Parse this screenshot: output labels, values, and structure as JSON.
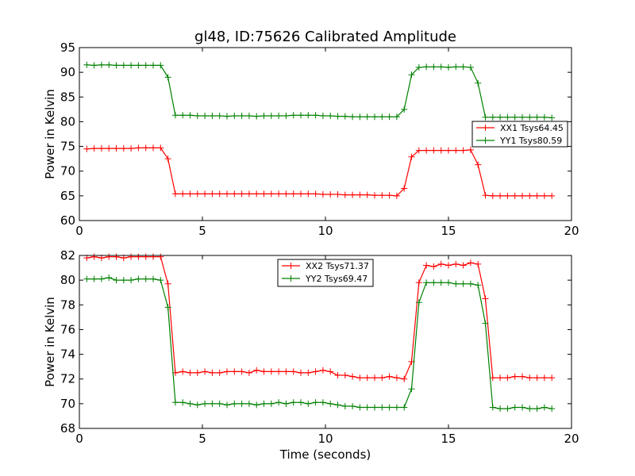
{
  "title": "gl48, ID:75626 Calibrated Amplitude",
  "xlabel": "Time (seconds)",
  "chart_data": [
    {
      "type": "line",
      "title": "gl48, ID:75626 Calibrated Amplitude",
      "xlabel": "",
      "ylabel": "Power in Kelvin",
      "xlim": [
        0,
        20
      ],
      "ylim": [
        60,
        95
      ],
      "xticks": [
        0,
        5,
        10,
        15,
        20
      ],
      "yticks": [
        60,
        65,
        70,
        75,
        80,
        85,
        90,
        95
      ],
      "legend_position": "center-right",
      "grid": false,
      "x": [
        0.3,
        0.6,
        0.9,
        1.2,
        1.5,
        1.8,
        2.1,
        2.4,
        2.7,
        3.0,
        3.3,
        3.6,
        3.9,
        4.2,
        4.5,
        4.8,
        5.1,
        5.4,
        5.7,
        6.0,
        6.3,
        6.6,
        6.9,
        7.2,
        7.5,
        7.8,
        8.1,
        8.4,
        8.7,
        9.0,
        9.3,
        9.6,
        9.9,
        10.2,
        10.5,
        10.8,
        11.1,
        11.4,
        11.7,
        12.0,
        12.3,
        12.6,
        12.9,
        13.2,
        13.5,
        13.8,
        14.1,
        14.4,
        14.7,
        15.0,
        15.3,
        15.6,
        15.9,
        16.2,
        16.5,
        16.8,
        17.1,
        17.4,
        17.7,
        18.0,
        18.3,
        18.6,
        18.9,
        19.2
      ],
      "series": [
        {
          "name": "XX1 Tsys64.45",
          "color": "#ff0000",
          "values": [
            74.5,
            74.6,
            74.6,
            74.6,
            74.6,
            74.6,
            74.6,
            74.7,
            74.7,
            74.7,
            74.7,
            72.5,
            65.4,
            65.4,
            65.4,
            65.4,
            65.4,
            65.4,
            65.4,
            65.4,
            65.4,
            65.4,
            65.4,
            65.4,
            65.4,
            65.4,
            65.4,
            65.4,
            65.4,
            65.4,
            65.4,
            65.4,
            65.3,
            65.3,
            65.3,
            65.2,
            65.2,
            65.2,
            65.2,
            65.1,
            65.1,
            65.1,
            65.0,
            66.5,
            72.9,
            74.2,
            74.2,
            74.2,
            74.2,
            74.2,
            74.2,
            74.2,
            74.3,
            71.3,
            65.1,
            65.0,
            65.0,
            65.0,
            65.0,
            65.0,
            65.0,
            65.0,
            65.0,
            65.0
          ]
        },
        {
          "name": "YY1 Tsys80.59",
          "color": "#008000",
          "values": [
            91.5,
            91.4,
            91.5,
            91.5,
            91.4,
            91.4,
            91.4,
            91.4,
            91.4,
            91.4,
            91.4,
            89.0,
            81.3,
            81.3,
            81.3,
            81.2,
            81.2,
            81.2,
            81.2,
            81.1,
            81.2,
            81.2,
            81.2,
            81.1,
            81.2,
            81.2,
            81.2,
            81.2,
            81.3,
            81.3,
            81.3,
            81.3,
            81.2,
            81.2,
            81.1,
            81.1,
            81.0,
            81.0,
            81.0,
            81.0,
            81.0,
            81.0,
            81.0,
            82.5,
            89.5,
            91.0,
            91.1,
            91.1,
            91.1,
            91.0,
            91.1,
            91.1,
            91.0,
            87.8,
            80.9,
            80.9,
            80.9,
            80.9,
            80.9,
            80.9,
            80.9,
            80.9,
            80.9,
            80.8
          ]
        }
      ]
    },
    {
      "type": "line",
      "title": "",
      "xlabel": "Time (seconds)",
      "ylabel": "Power in Kelvin",
      "xlim": [
        0,
        20
      ],
      "ylim": [
        68,
        82
      ],
      "xticks": [
        0,
        5,
        10,
        15,
        20
      ],
      "yticks": [
        68,
        70,
        72,
        74,
        76,
        78,
        80,
        82
      ],
      "legend_position": "top-center",
      "grid": false,
      "x": [
        0.3,
        0.6,
        0.9,
        1.2,
        1.5,
        1.8,
        2.1,
        2.4,
        2.7,
        3.0,
        3.3,
        3.6,
        3.9,
        4.2,
        4.5,
        4.8,
        5.1,
        5.4,
        5.7,
        6.0,
        6.3,
        6.6,
        6.9,
        7.2,
        7.5,
        7.8,
        8.1,
        8.4,
        8.7,
        9.0,
        9.3,
        9.6,
        9.9,
        10.2,
        10.5,
        10.8,
        11.1,
        11.4,
        11.7,
        12.0,
        12.3,
        12.6,
        12.9,
        13.2,
        13.5,
        13.8,
        14.1,
        14.4,
        14.7,
        15.0,
        15.3,
        15.6,
        15.9,
        16.2,
        16.5,
        16.8,
        17.1,
        17.4,
        17.7,
        18.0,
        18.3,
        18.6,
        18.9,
        19.2
      ],
      "series": [
        {
          "name": "XX2 Tsys71.37",
          "color": "#ff0000",
          "values": [
            81.8,
            81.9,
            81.8,
            81.9,
            81.9,
            81.8,
            81.9,
            81.9,
            81.9,
            81.9,
            81.9,
            79.7,
            72.5,
            72.6,
            72.5,
            72.5,
            72.6,
            72.5,
            72.5,
            72.6,
            72.6,
            72.6,
            72.5,
            72.7,
            72.6,
            72.6,
            72.6,
            72.6,
            72.6,
            72.5,
            72.5,
            72.6,
            72.7,
            72.6,
            72.3,
            72.3,
            72.2,
            72.1,
            72.1,
            72.1,
            72.1,
            72.2,
            72.1,
            72.0,
            73.4,
            79.8,
            81.2,
            81.1,
            81.3,
            81.2,
            81.3,
            81.2,
            81.4,
            81.3,
            78.5,
            72.1,
            72.1,
            72.1,
            72.2,
            72.2,
            72.1,
            72.1,
            72.1,
            72.1
          ]
        },
        {
          "name": "YY2 Tsys69.47",
          "color": "#008000",
          "values": [
            80.1,
            80.1,
            80.1,
            80.2,
            80.0,
            80.0,
            80.0,
            80.1,
            80.1,
            80.1,
            80.0,
            77.8,
            70.1,
            70.1,
            70.0,
            69.9,
            70.0,
            70.0,
            70.0,
            69.9,
            70.0,
            70.0,
            70.0,
            69.9,
            70.0,
            70.0,
            70.1,
            70.0,
            70.1,
            70.1,
            70.0,
            70.1,
            70.1,
            70.0,
            69.9,
            69.8,
            69.8,
            69.7,
            69.7,
            69.7,
            69.7,
            69.7,
            69.7,
            69.7,
            71.2,
            78.2,
            79.8,
            79.8,
            79.8,
            79.8,
            79.7,
            79.7,
            79.7,
            79.6,
            76.5,
            69.7,
            69.6,
            69.6,
            69.7,
            69.7,
            69.6,
            69.6,
            69.7,
            69.6
          ]
        }
      ]
    }
  ]
}
